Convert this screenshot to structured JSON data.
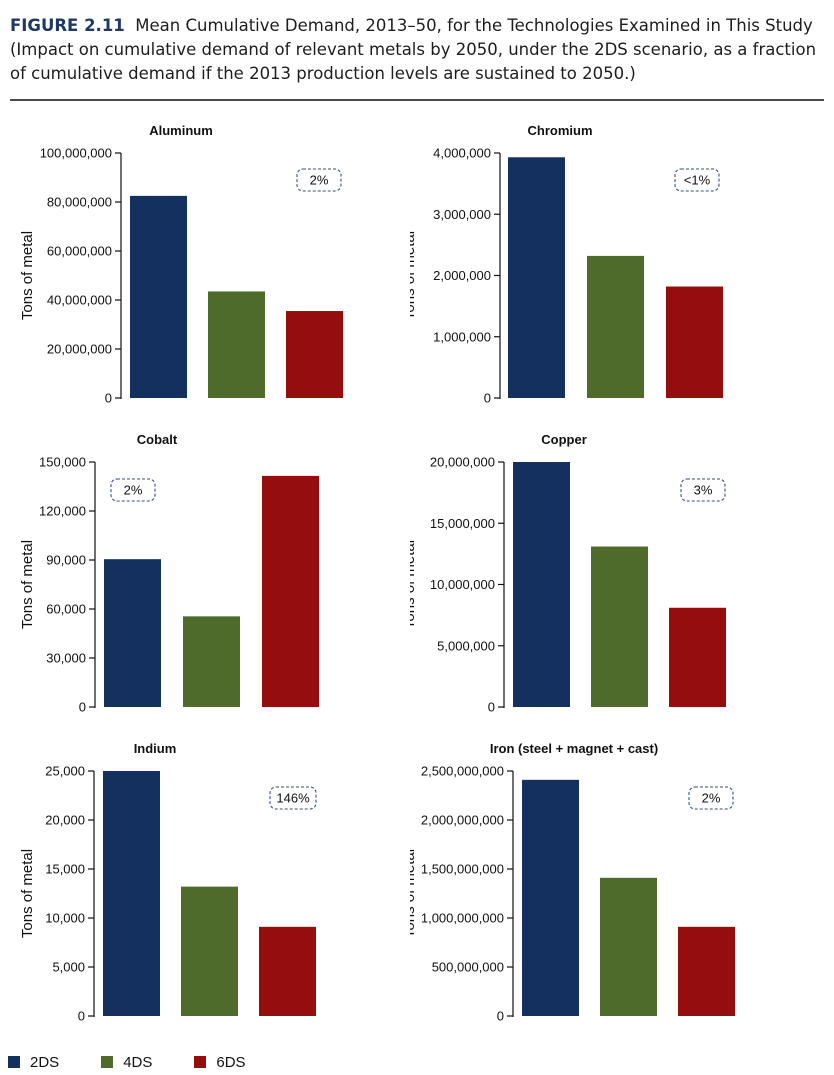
{
  "header": {
    "figure_label": "FIGURE 2.11",
    "title": "Mean Cumulative Demand, 2013–50, for the Technologies Examined in This Study",
    "subtitle": "(Impact on cumulative demand of relevant metals by 2050, under the 2DS scenario, as a fraction of cumulative demand if the 2013 production levels are sustained to 2050.)"
  },
  "legend": [
    {
      "label": "2DS",
      "color": "#14305f"
    },
    {
      "label": "4DS",
      "color": "#4f6b2c"
    },
    {
      "label": "6DS",
      "color": "#960d0d"
    }
  ],
  "chart_data": [
    {
      "type": "bar",
      "title": "Aluminum",
      "ylabel": "Tons of metal",
      "categories": [
        "2DS",
        "4DS",
        "6DS"
      ],
      "values": [
        82500000,
        43500000,
        35500000
      ],
      "ylim": [
        0,
        100000000
      ],
      "yticks": [
        "0",
        "20,000,000",
        "40,000,000",
        "60,000,000",
        "80,000,000",
        "100,000,000"
      ],
      "annotation": "2%",
      "annotation_position": "top-right"
    },
    {
      "type": "bar",
      "title": "Chromium",
      "ylabel": "Tons of metal",
      "categories": [
        "2DS",
        "4DS",
        "6DS"
      ],
      "values": [
        3930000,
        2320000,
        1820000
      ],
      "ylim": [
        0,
        4000000
      ],
      "yticks": [
        "0",
        "1,000,000",
        "2,000,000",
        "3,000,000",
        "4,000,000"
      ],
      "annotation": "<1%",
      "annotation_position": "top-right"
    },
    {
      "type": "bar",
      "title": "Cobalt",
      "ylabel": "Tons of metal",
      "categories": [
        "2DS",
        "4DS",
        "6DS"
      ],
      "values": [
        90500,
        55500,
        141500
      ],
      "ylim": [
        0,
        150000
      ],
      "yticks": [
        "0",
        "30,000",
        "60,000",
        "90,000",
        "120,000",
        "150,000"
      ],
      "annotation": "2%",
      "annotation_position": "top-left"
    },
    {
      "type": "bar",
      "title": "Copper",
      "ylabel": "Tons of metal",
      "categories": [
        "2DS",
        "4DS",
        "6DS"
      ],
      "values": [
        20000000,
        13100000,
        8100000
      ],
      "ylim": [
        0,
        20000000
      ],
      "yticks": [
        "0",
        "5,000,000",
        "10,000,000",
        "15,000,000",
        "20,000,000"
      ],
      "annotation": "3%",
      "annotation_position": "top-right"
    },
    {
      "type": "bar",
      "title": "Indium",
      "ylabel": "Tons of metal",
      "categories": [
        "2DS",
        "4DS",
        "6DS"
      ],
      "values": [
        25000,
        13200,
        9100
      ],
      "ylim": [
        0,
        25000
      ],
      "yticks": [
        "0",
        "5,000",
        "10,000",
        "15,000",
        "20,000",
        "25,000"
      ],
      "annotation": "146%",
      "annotation_position": "top-right"
    },
    {
      "type": "bar",
      "title": "Iron (steel + magnet + cast)",
      "ylabel": "Tons of metal",
      "categories": [
        "2DS",
        "4DS",
        "6DS"
      ],
      "values": [
        2410000000,
        1410000000,
        910000000
      ],
      "ylim": [
        0,
        2500000000
      ],
      "yticks": [
        "0",
        "500,000,000",
        "1,000,000,000",
        "1,500,000,000",
        "2,000,000,000",
        "2,500,000,000"
      ],
      "annotation": "2%",
      "annotation_position": "top-right"
    }
  ]
}
